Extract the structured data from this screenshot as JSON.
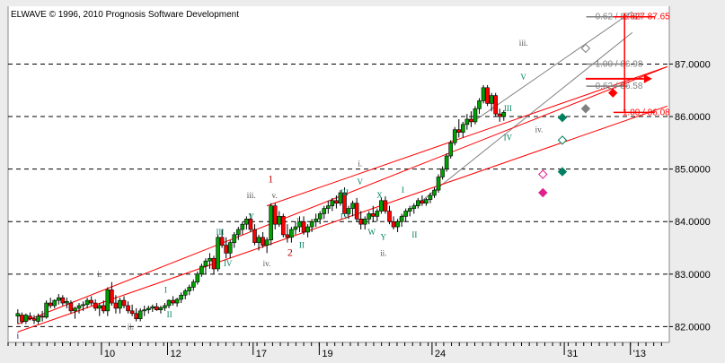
{
  "copyright": "ELWAVE © 1996, 2010 Prognosis Software Development",
  "colors": {
    "plot_bg": "#ffffff",
    "panel_bg": "#ececec",
    "grid": "#000000",
    "channel": "#ff0000",
    "guide": "#808080",
    "candle_up": "#00a000",
    "candle_down": "#ff0000",
    "wave_green": "#008060",
    "wave_gray": "#505050",
    "wave_red": "#c00000",
    "wave_blue": "#0000a0",
    "proj_red": "#ff0000",
    "proj_gray": "#808080",
    "magenta": "#e0208c",
    "teal": "#008060"
  },
  "chart_data": {
    "type": "candlestick",
    "title": "",
    "xlabel": "",
    "ylabel": "",
    "ylim": [
      81.7,
      88.1
    ],
    "y_ticks": [
      "82.0000",
      "83.0000",
      "84.0000",
      "85.0000",
      "86.0000",
      "87.0000"
    ],
    "y_tick_values": [
      82,
      83,
      84,
      85,
      86,
      87
    ],
    "x_ticks": [
      "10",
      "12",
      "17",
      "19",
      "24",
      "31",
      "'13"
    ],
    "x_tick_bars": [
      24,
      41,
      63,
      80,
      109,
      143,
      160
    ],
    "total_bars": 170,
    "ohlc": [
      [
        82.2,
        82.33,
        82.05,
        82.25
      ],
      [
        82.22,
        82.27,
        82.05,
        82.1
      ],
      [
        82.1,
        82.25,
        82.05,
        82.22
      ],
      [
        82.2,
        82.27,
        82.12,
        82.15
      ],
      [
        82.15,
        82.22,
        82.05,
        82.12
      ],
      [
        82.1,
        82.25,
        82.05,
        82.2
      ],
      [
        82.2,
        82.3,
        82.1,
        82.18
      ],
      [
        82.18,
        82.5,
        82.15,
        82.45
      ],
      [
        82.45,
        82.55,
        82.35,
        82.4
      ],
      [
        82.4,
        82.52,
        82.35,
        82.5
      ],
      [
        82.5,
        82.62,
        82.42,
        82.55
      ],
      [
        82.55,
        82.6,
        82.4,
        82.45
      ],
      [
        82.45,
        82.55,
        82.35,
        82.48
      ],
      [
        82.45,
        82.5,
        82.25,
        82.3
      ],
      [
        82.3,
        82.38,
        82.15,
        82.35
      ],
      [
        82.35,
        82.45,
        82.25,
        82.4
      ],
      [
        82.4,
        82.48,
        82.3,
        82.42
      ],
      [
        82.42,
        82.55,
        82.35,
        82.5
      ],
      [
        82.5,
        82.58,
        82.4,
        82.45
      ],
      [
        82.45,
        82.52,
        82.3,
        82.35
      ],
      [
        82.35,
        82.45,
        82.2,
        82.4
      ],
      [
        82.4,
        82.5,
        82.25,
        82.3
      ],
      [
        82.3,
        82.75,
        82.2,
        82.7
      ],
      [
        82.7,
        82.85,
        82.4,
        82.45
      ],
      [
        82.45,
        82.6,
        82.25,
        82.35
      ],
      [
        82.35,
        82.55,
        82.25,
        82.5
      ],
      [
        82.5,
        82.58,
        82.35,
        82.4
      ],
      [
        82.4,
        82.48,
        82.25,
        82.3
      ],
      [
        82.3,
        82.42,
        82.2,
        82.25
      ],
      [
        82.25,
        82.35,
        82.1,
        82.15
      ],
      [
        82.15,
        82.35,
        82.1,
        82.3
      ],
      [
        82.3,
        82.4,
        82.2,
        82.32
      ],
      [
        82.32,
        82.4,
        82.25,
        82.35
      ],
      [
        82.35,
        82.42,
        82.28,
        82.38
      ],
      [
        82.38,
        82.45,
        82.3,
        82.32
      ],
      [
        82.32,
        82.4,
        82.25,
        82.36
      ],
      [
        82.36,
        82.45,
        82.3,
        82.4
      ],
      [
        82.4,
        82.52,
        82.35,
        82.5
      ],
      [
        82.5,
        82.58,
        82.4,
        82.45
      ],
      [
        82.45,
        82.55,
        82.38,
        82.52
      ],
      [
        82.52,
        82.65,
        82.45,
        82.6
      ],
      [
        82.6,
        82.72,
        82.52,
        82.68
      ],
      [
        82.68,
        82.8,
        82.6,
        82.75
      ],
      [
        82.75,
        82.9,
        82.68,
        82.85
      ],
      [
        82.85,
        83.05,
        82.8,
        83.0
      ],
      [
        83.0,
        83.2,
        82.95,
        83.15
      ],
      [
        83.15,
        83.3,
        83.0,
        83.25
      ],
      [
        83.25,
        83.4,
        83.1,
        83.3
      ],
      [
        83.3,
        83.35,
        83.0,
        83.1
      ],
      [
        83.1,
        83.75,
        83.05,
        83.7
      ],
      [
        83.7,
        83.85,
        83.5,
        83.55
      ],
      [
        83.55,
        83.7,
        83.3,
        83.4
      ],
      [
        83.4,
        83.65,
        83.3,
        83.6
      ],
      [
        83.6,
        83.8,
        83.5,
        83.75
      ],
      [
        83.75,
        83.9,
        83.65,
        83.85
      ],
      [
        83.85,
        84.0,
        83.75,
        83.95
      ],
      [
        83.95,
        84.1,
        83.85,
        84.05
      ],
      [
        84.05,
        84.15,
        83.8,
        83.85
      ],
      [
        83.85,
        83.95,
        83.55,
        83.6
      ],
      [
        83.6,
        83.75,
        83.45,
        83.7
      ],
      [
        83.7,
        83.8,
        83.5,
        83.55
      ],
      [
        83.55,
        83.7,
        83.4,
        83.65
      ],
      [
        83.65,
        84.35,
        83.55,
        84.3
      ],
      [
        84.3,
        84.35,
        83.85,
        83.95
      ],
      [
        83.95,
        84.2,
        83.9,
        84.1
      ],
      [
        84.1,
        84.15,
        83.7,
        83.75
      ],
      [
        83.75,
        83.95,
        83.6,
        83.7
      ],
      [
        83.7,
        83.9,
        83.6,
        83.85
      ],
      [
        83.85,
        84.0,
        83.75,
        83.9
      ],
      [
        83.9,
        84.1,
        83.8,
        84.0
      ],
      [
        84.0,
        84.1,
        83.75,
        83.8
      ],
      [
        83.8,
        83.95,
        83.7,
        83.9
      ],
      [
        83.9,
        84.05,
        83.8,
        84.0
      ],
      [
        84.0,
        84.15,
        83.9,
        84.05
      ],
      [
        84.05,
        84.2,
        83.95,
        84.15
      ],
      [
        84.15,
        84.3,
        84.05,
        84.25
      ],
      [
        84.25,
        84.4,
        84.15,
        84.3
      ],
      [
        84.3,
        84.45,
        84.2,
        84.4
      ],
      [
        84.4,
        84.5,
        84.25,
        84.35
      ],
      [
        84.35,
        84.6,
        84.3,
        84.55
      ],
      [
        84.55,
        84.65,
        84.1,
        84.15
      ],
      [
        84.15,
        84.3,
        84.05,
        84.25
      ],
      [
        84.25,
        84.4,
        84.1,
        84.35
      ],
      [
        84.35,
        84.45,
        84.0,
        84.05
      ],
      [
        84.05,
        84.2,
        83.85,
        83.95
      ],
      [
        83.95,
        84.1,
        83.85,
        84.05
      ],
      [
        84.05,
        84.2,
        83.95,
        84.15
      ],
      [
        84.15,
        84.3,
        84.0,
        84.1
      ],
      [
        84.1,
        84.25,
        84.0,
        84.2
      ],
      [
        84.2,
        84.45,
        84.15,
        84.4
      ],
      [
        84.4,
        84.48,
        84.15,
        84.2
      ],
      [
        84.2,
        84.3,
        83.95,
        84.0
      ],
      [
        84.0,
        84.1,
        83.85,
        83.9
      ],
      [
        83.9,
        84.05,
        83.8,
        84.0
      ],
      [
        84.0,
        84.15,
        83.9,
        84.1
      ],
      [
        84.1,
        84.25,
        84.0,
        84.2
      ],
      [
        84.2,
        84.3,
        84.1,
        84.25
      ],
      [
        84.25,
        84.35,
        84.15,
        84.3
      ],
      [
        84.3,
        84.45,
        84.25,
        84.4
      ],
      [
        84.4,
        84.5,
        84.3,
        84.35
      ],
      [
        84.35,
        84.45,
        84.3,
        84.42
      ],
      [
        84.42,
        84.55,
        84.35,
        84.5
      ],
      [
        84.5,
        84.65,
        84.45,
        84.6
      ],
      [
        84.6,
        84.9,
        84.55,
        84.85
      ],
      [
        84.85,
        85.05,
        84.8,
        85.0
      ],
      [
        85.0,
        85.3,
        84.95,
        85.25
      ],
      [
        85.25,
        85.55,
        85.2,
        85.5
      ],
      [
        85.5,
        85.8,
        85.45,
        85.75
      ],
      [
        85.75,
        85.95,
        85.6,
        85.7
      ],
      [
        85.7,
        85.9,
        85.6,
        85.85
      ],
      [
        85.85,
        86.05,
        85.75,
        85.95
      ],
      [
        85.95,
        86.1,
        85.8,
        85.9
      ],
      [
        85.9,
        86.2,
        85.85,
        86.15
      ],
      [
        86.15,
        86.35,
        86.05,
        86.3
      ],
      [
        86.3,
        86.6,
        86.25,
        86.55
      ],
      [
        86.55,
        86.6,
        86.2,
        86.25
      ],
      [
        86.25,
        86.45,
        86.1,
        86.4
      ],
      [
        86.4,
        86.45,
        86.0,
        86.05
      ],
      [
        86.05,
        86.15,
        85.9,
        86.0
      ],
      [
        86.0,
        86.12,
        85.92,
        86.08
      ]
    ],
    "ohlc_offset": 2,
    "channel": {
      "upper": [
        [
          2,
          82.05
        ],
        [
          169,
          86.95
        ]
      ],
      "lower": [
        [
          2,
          81.9
        ],
        [
          169,
          86.2
        ]
      ],
      "outer": [
        [
          66,
          84.3
        ],
        [
          169,
          86.95
        ]
      ]
    },
    "guides": [
      [
        [
          100,
          84.05
        ],
        [
          160,
          87.6
        ]
      ],
      [
        [
          120,
          85.95
        ],
        [
          160,
          88.0
        ]
      ]
    ],
    "wave_labels": [
      {
        "text": "i",
        "bar": 2,
        "y": 81.78,
        "color": "wave_blue",
        "size": "small"
      },
      {
        "text": "i.",
        "bar": 23,
        "y": 82.95,
        "color": "wave_gray",
        "size": "small"
      },
      {
        "text": "ii.",
        "bar": 31,
        "y": 81.95,
        "color": "wave_gray",
        "size": "small"
      },
      {
        "text": "I",
        "bar": 40,
        "y": 82.65,
        "color": "wave_green",
        "size": "small"
      },
      {
        "text": "II",
        "bar": 41,
        "y": 82.18,
        "color": "wave_green",
        "size": "small"
      },
      {
        "text": "III",
        "bar": 54,
        "y": 83.75,
        "color": "wave_green",
        "size": "small"
      },
      {
        "text": "IV",
        "bar": 56,
        "y": 83.15,
        "color": "wave_green",
        "size": "small"
      },
      {
        "text": "V",
        "bar": 62,
        "y": 84.05,
        "color": "wave_green",
        "size": "small"
      },
      {
        "text": "iii.",
        "bar": 62,
        "y": 84.45,
        "color": "wave_gray",
        "size": "small"
      },
      {
        "text": "iv.",
        "bar": 66,
        "y": 83.15,
        "color": "wave_gray",
        "size": "small"
      },
      {
        "text": "v.",
        "bar": 68,
        "y": 84.45,
        "color": "wave_gray",
        "size": "small"
      },
      {
        "text": "1",
        "bar": 67,
        "y": 84.75,
        "color": "wave_red",
        "size": "big"
      },
      {
        "text": "2",
        "bar": 72,
        "y": 83.35,
        "color": "wave_red",
        "size": "big"
      },
      {
        "text": "I",
        "bar": 74,
        "y": 83.95,
        "color": "wave_green",
        "size": "small"
      },
      {
        "text": "II",
        "bar": 75,
        "y": 83.5,
        "color": "wave_green",
        "size": "small"
      },
      {
        "text": "III",
        "bar": 86,
        "y": 84.5,
        "color": "wave_green",
        "size": "small"
      },
      {
        "text": "IV",
        "bar": 86,
        "y": 84.05,
        "color": "wave_green",
        "size": "small"
      },
      {
        "text": "V",
        "bar": 90,
        "y": 84.7,
        "color": "wave_green",
        "size": "small"
      },
      {
        "text": "i.",
        "bar": 90,
        "y": 85.05,
        "color": "wave_gray",
        "size": "small"
      },
      {
        "text": "X",
        "bar": 95,
        "y": 84.45,
        "color": "wave_green",
        "size": "small"
      },
      {
        "text": "W",
        "bar": 93,
        "y": 83.75,
        "color": "wave_green",
        "size": "small"
      },
      {
        "text": "Y",
        "bar": 96,
        "y": 83.65,
        "color": "wave_green",
        "size": "small"
      },
      {
        "text": "ii.",
        "bar": 96,
        "y": 83.35,
        "color": "wave_gray",
        "size": "small"
      },
      {
        "text": "I",
        "bar": 101,
        "y": 84.55,
        "color": "wave_green",
        "size": "small"
      },
      {
        "text": "II",
        "bar": 104,
        "y": 83.7,
        "color": "wave_green",
        "size": "small"
      },
      {
        "text": "III",
        "bar": 128,
        "y": 86.1,
        "color": "wave_green",
        "size": "small"
      },
      {
        "text": "IV",
        "bar": 128,
        "y": 85.55,
        "color": "wave_green",
        "size": "small"
      },
      {
        "text": "V",
        "bar": 132,
        "y": 86.7,
        "color": "wave_green",
        "size": "small"
      },
      {
        "text": "iii.",
        "bar": 132,
        "y": 87.35,
        "color": "wave_gray",
        "size": "small"
      },
      {
        "text": "iv.",
        "bar": 136,
        "y": 85.7,
        "color": "wave_gray",
        "size": "small"
      }
    ],
    "projections": [
      {
        "text": "0.62 / 87.87",
        "bar": 150,
        "y": 87.9,
        "color": "proj_gray"
      },
      {
        "text": "1.627 87.65",
        "bar": 157,
        "y": 87.9,
        "color": "proj_red"
      },
      {
        "text": "1.00 / 86.98",
        "bar": 150,
        "y": 87.0,
        "color": "proj_gray"
      },
      {
        "text": "0.62 / 86.58",
        "bar": 150,
        "y": 86.58,
        "color": "proj_gray"
      },
      {
        "text": "1.00 / 86.08",
        "bar": 157,
        "y": 86.08,
        "color": "proj_red"
      }
    ],
    "markers": [
      {
        "bar": 148,
        "y": 87.3,
        "color": "proj_gray",
        "fill": false
      },
      {
        "bar": 148,
        "y": 86.15,
        "color": "proj_gray",
        "fill": true
      },
      {
        "bar": 155,
        "y": 86.45,
        "color": "proj_red",
        "fill": true
      },
      {
        "bar": 142,
        "y": 85.55,
        "color": "teal",
        "fill": false
      },
      {
        "bar": 142,
        "y": 84.95,
        "color": "teal",
        "fill": true
      },
      {
        "bar": 137,
        "y": 84.9,
        "color": "magenta",
        "fill": false
      },
      {
        "bar": 137,
        "y": 84.55,
        "color": "magenta",
        "fill": true
      },
      {
        "bar": 142,
        "y": 85.98,
        "color": "teal",
        "fill": true
      }
    ]
  }
}
